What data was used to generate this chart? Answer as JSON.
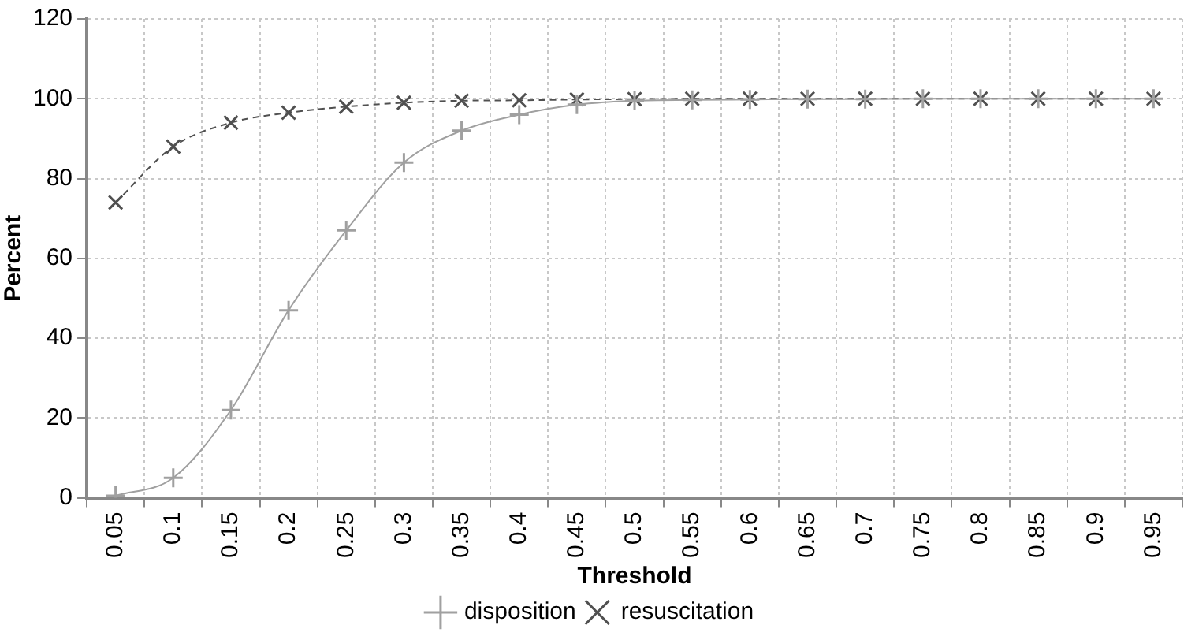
{
  "chart_data": {
    "type": "line",
    "xlabel": "Threshold",
    "ylabel": "Percent",
    "categories": [
      "0.05",
      "0.1",
      "0.15",
      "0.2",
      "0.25",
      "0.3",
      "0.35",
      "0.4",
      "0.45",
      "0.5",
      "0.55",
      "0.6",
      "0.65",
      "0.7",
      "0.75",
      "0.8",
      "0.85",
      "0.9",
      "0.95"
    ],
    "series": [
      {
        "name": "disposition",
        "color": "#a0a0a0",
        "marker": "cross",
        "line_style": "solid",
        "values": [
          0.5,
          5,
          22,
          47,
          67,
          84,
          92,
          96,
          98.5,
          99.5,
          99.7,
          99.8,
          99.9,
          99.9,
          100,
          100,
          100,
          100,
          100
        ]
      },
      {
        "name": "resuscitation",
        "color": "#505050",
        "marker": "x",
        "line_style": "dashed",
        "values": [
          74,
          88,
          94,
          96.5,
          98,
          99,
          99.5,
          99.6,
          99.8,
          99.9,
          100,
          100,
          100,
          100,
          100,
          100,
          100,
          100,
          100
        ]
      }
    ],
    "ylim": [
      0,
      120
    ],
    "yticks": [
      0,
      20,
      40,
      60,
      80,
      100,
      120
    ],
    "grid": true,
    "legend": "bottom"
  }
}
